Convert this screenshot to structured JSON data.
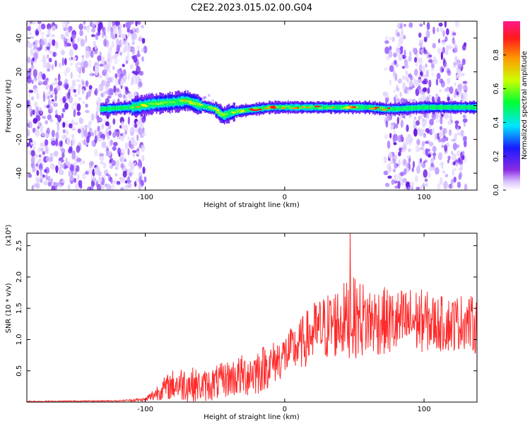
{
  "title": "C2E2.2023.015.02.00.G04",
  "chart_data": [
    {
      "type": "heatmap",
      "xlabel": "Height of straight line (km)",
      "ylabel": "Frequency (Hz)",
      "xlim": [
        -185,
        138
      ],
      "ylim": [
        -50,
        50
      ],
      "xticks": [
        -100,
        0,
        100
      ],
      "yticks": [
        -40,
        -20,
        0,
        20,
        40
      ],
      "colorbar": {
        "label": "Normalized spectral amplitude",
        "range": [
          0,
          1
        ],
        "ticks": [
          "0.0",
          "0.2",
          "0.4",
          "0.6",
          "0.8"
        ]
      },
      "band_centerline": {
        "x": [
          -130,
          -110,
          -95,
          -80,
          -70,
          -60,
          -50,
          -44,
          -38,
          -30,
          -20,
          -10,
          0,
          20,
          40,
          60,
          72,
          80,
          100,
          120,
          138
        ],
        "y": [
          -2,
          -1,
          1,
          2,
          3,
          0,
          -2,
          -6,
          -4,
          -3,
          -2,
          -1,
          -1,
          -1,
          -1,
          -1,
          -2,
          -2,
          -1,
          -1,
          -1
        ]
      },
      "noise_regions_x": [
        [
          -185,
          -100
        ],
        [
          72,
          130
        ]
      ]
    },
    {
      "type": "line",
      "xlabel": "Height of straight line (km)",
      "ylabel": "SNR (10 * v/v)",
      "y_scale_note": "(x10⁴)",
      "xlim": [
        -185,
        138
      ],
      "ylim": [
        0,
        2.7
      ],
      "xticks": [
        -100,
        0,
        100
      ],
      "yticks": [
        0.5,
        1.0,
        1.5,
        2.0,
        2.5
      ],
      "ytick_labels": [
        "0.5",
        "1.0",
        "1.5",
        "2.0",
        "2.5"
      ],
      "series": [
        {
          "color": "#ff2a2a",
          "envelope_x": [
            -185,
            -120,
            -100,
            -95,
            -90,
            -80,
            -70,
            -60,
            -50,
            -40,
            -30,
            -20,
            -10,
            0,
            10,
            20,
            30,
            40,
            50,
            60,
            70,
            80,
            90,
            100,
            110,
            120,
            130,
            138
          ],
          "envelope_mean": [
            0.01,
            0.02,
            0.04,
            0.1,
            0.18,
            0.28,
            0.3,
            0.25,
            0.3,
            0.38,
            0.42,
            0.5,
            0.6,
            0.75,
            0.9,
            1.1,
            1.2,
            1.3,
            1.35,
            1.3,
            1.3,
            1.25,
            1.3,
            1.3,
            1.25,
            1.25,
            1.3,
            1.2
          ],
          "envelope_amp": [
            0.01,
            0.01,
            0.03,
            0.1,
            0.15,
            0.25,
            0.3,
            0.25,
            0.28,
            0.3,
            0.35,
            0.4,
            0.35,
            0.35,
            0.4,
            0.5,
            0.55,
            0.6,
            0.65,
            0.6,
            0.55,
            0.55,
            0.55,
            0.5,
            0.45,
            0.45,
            0.45,
            0.45
          ],
          "peak": {
            "x": 47,
            "y": 2.7
          }
        }
      ]
    }
  ]
}
